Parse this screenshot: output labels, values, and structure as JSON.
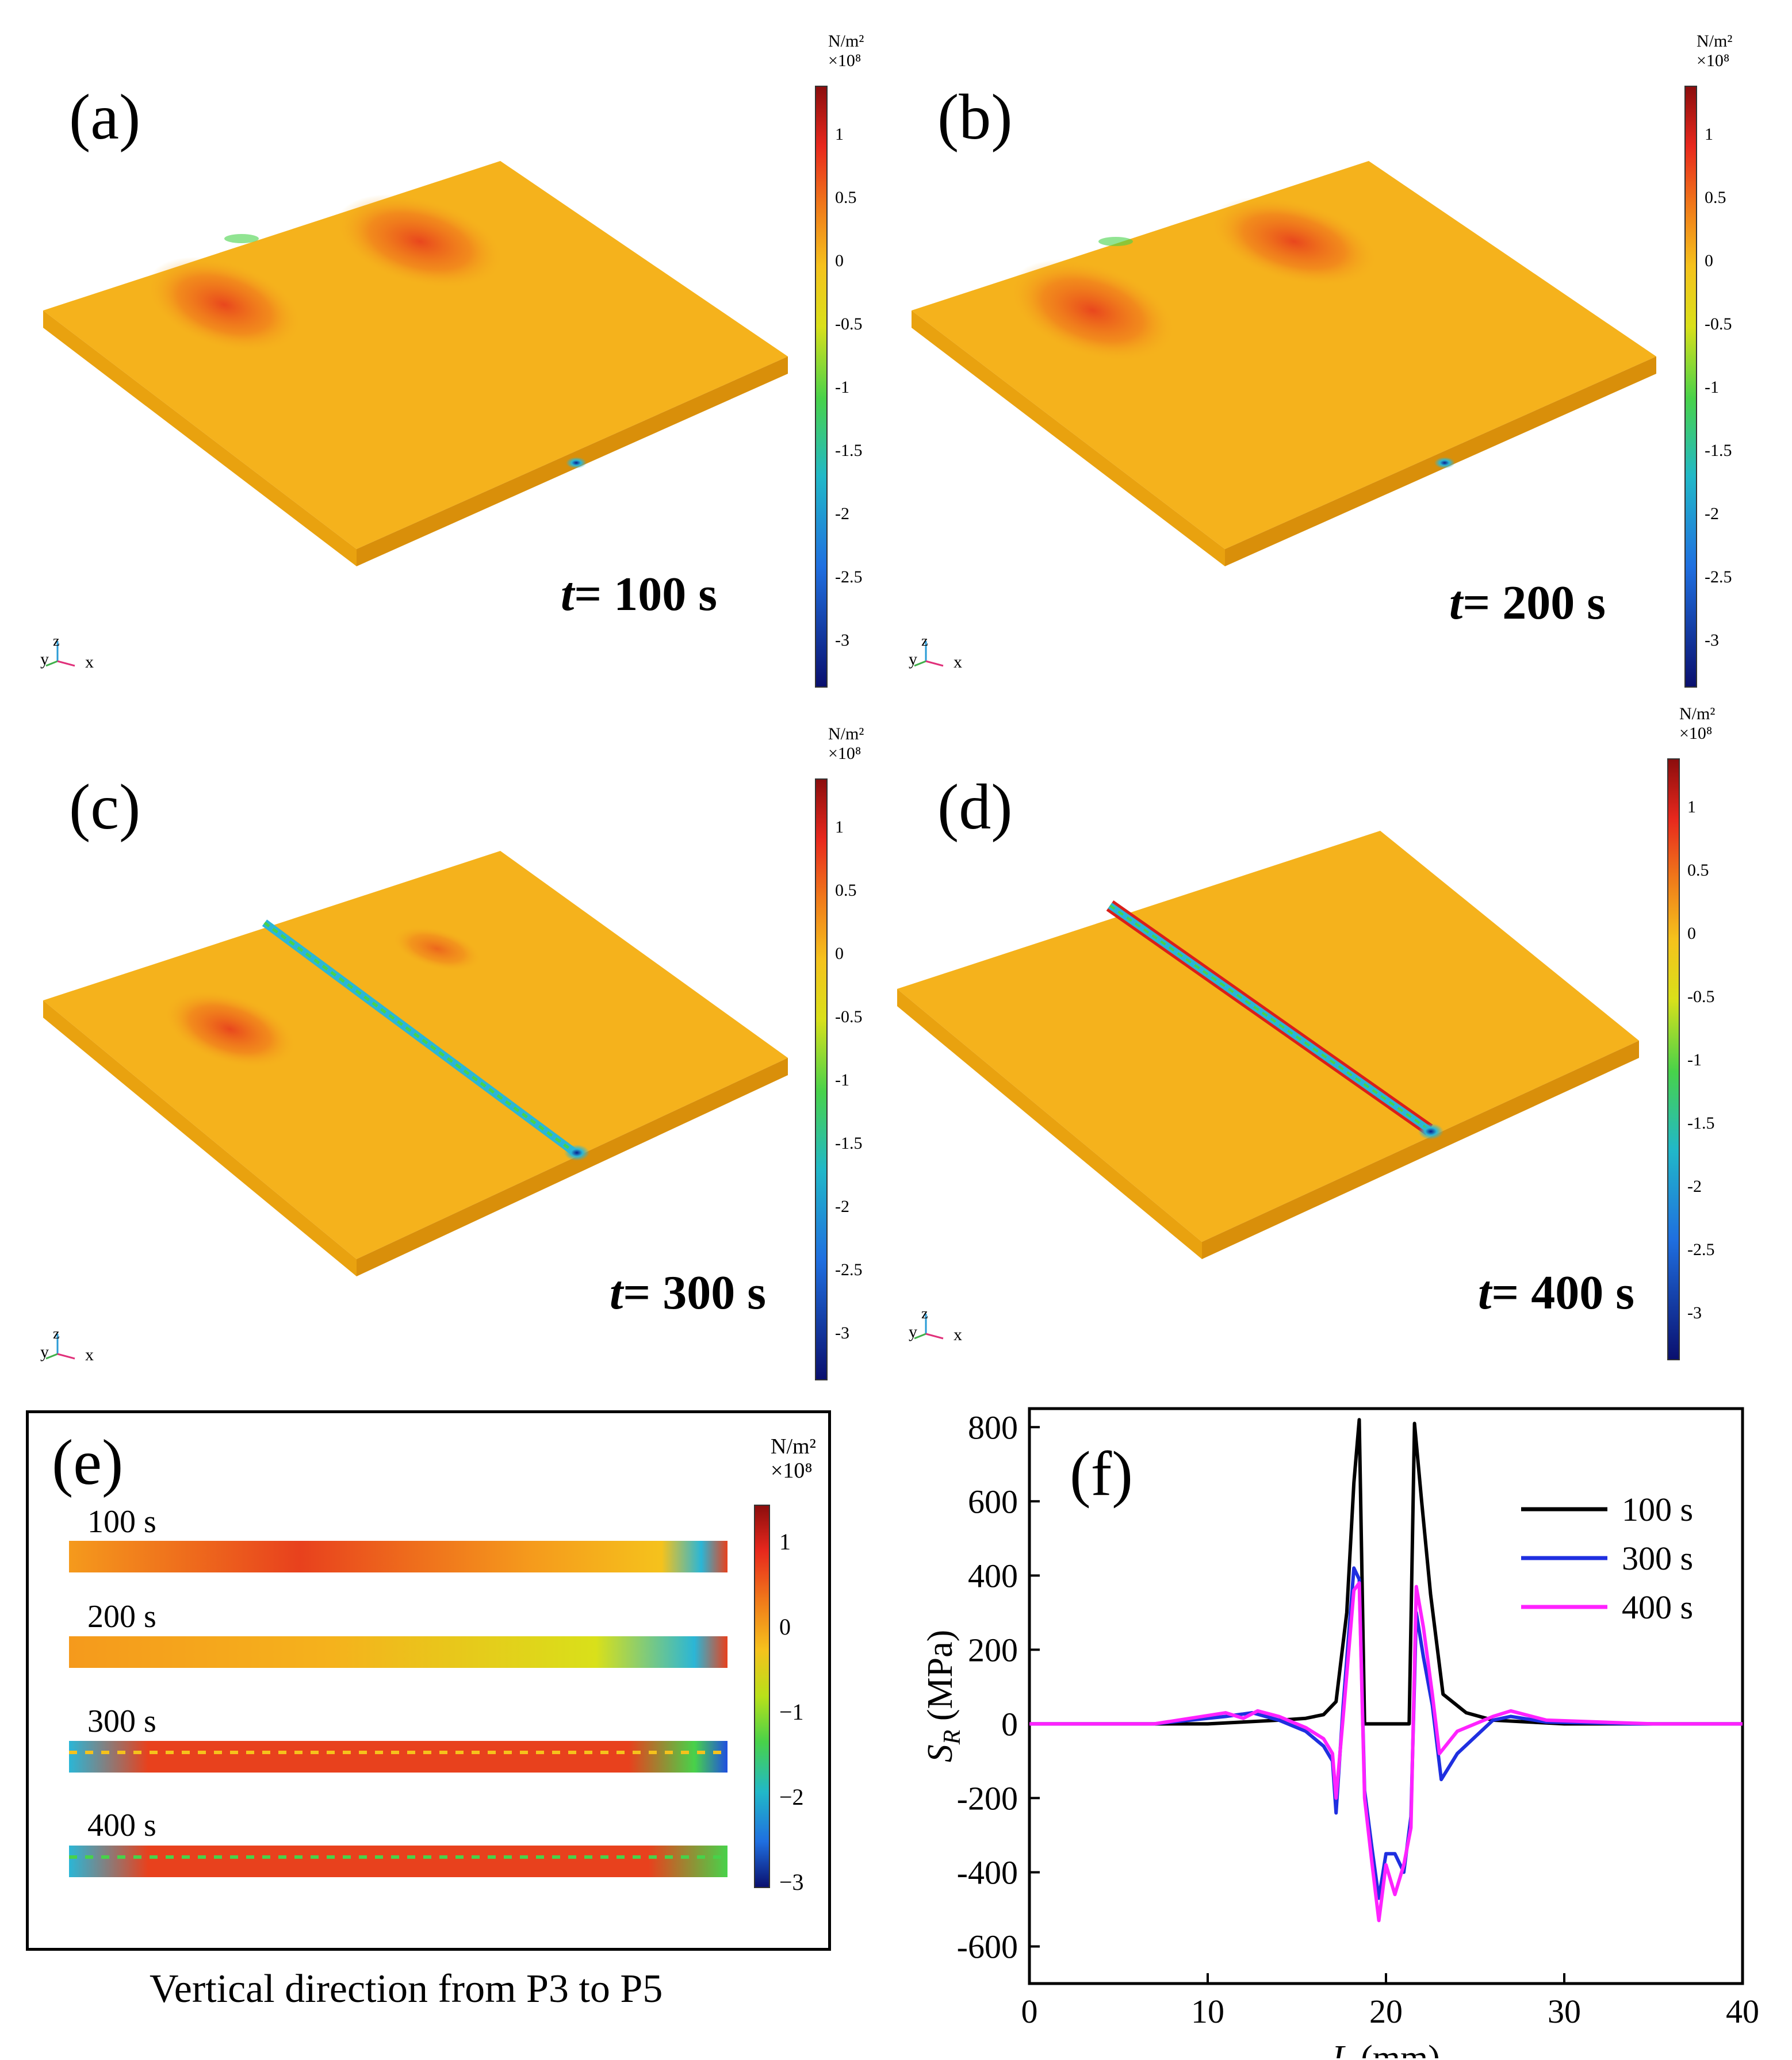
{
  "colors": {
    "plate_base": "#f5b21c",
    "plate_side": "#e9a20f",
    "tension": "#e8411d",
    "compression": "#2bb6d6",
    "deep_compression": "#0a1a8c",
    "series_100": "#000000",
    "series_300": "#1f2fe0",
    "series_400": "#ff22ff"
  },
  "colorbar": {
    "unit_line1": "N/m²",
    "unit_line2": "×10⁸",
    "ticks": [
      "1",
      "0.5",
      "0",
      "-0.5",
      "-1",
      "-1.5",
      "-2",
      "-2.5",
      "-3"
    ]
  },
  "panels": [
    {
      "label": "(a)",
      "t_prefix": "t",
      "t_value": "= 100 s",
      "axes": {
        "y": "y",
        "z": "z",
        "x": "x"
      }
    },
    {
      "label": "(b)",
      "t_prefix": "t",
      "t_value": "= 200 s",
      "axes": {
        "y": "y",
        "z": "z",
        "x": "x"
      }
    },
    {
      "label": "(c)",
      "t_prefix": "t",
      "t_value": "= 300 s",
      "axes": {
        "y": "y",
        "z": "z",
        "x": "x"
      }
    },
    {
      "label": "(d)",
      "t_prefix": "t",
      "t_value": "= 400 s",
      "axes": {
        "y": "y",
        "z": "z",
        "x": "x"
      }
    }
  ],
  "panel_e": {
    "label": "(e)",
    "caption": "Vertical direction from P3 to P5",
    "unit_line1": "N/m²",
    "unit_line2": "×10⁸",
    "ticks": [
      "1",
      "0",
      "−1",
      "−2",
      "−3"
    ],
    "strips": [
      "100 s",
      "200 s",
      "300 s",
      "400 s"
    ]
  },
  "chart_data": {
    "type": "line",
    "panel_label": "(f)",
    "xlabel_var": "L",
    "xlabel_unit": " (mm)",
    "ylabel_var": "S",
    "ylabel_sub": "R",
    "ylabel_unit": " (MPa)",
    "xlim": [
      0,
      40
    ],
    "ylim": [
      -700,
      850
    ],
    "xticks": [
      0,
      10,
      20,
      30,
      40
    ],
    "yticks": [
      800,
      600,
      400,
      200,
      0,
      -200,
      -400,
      -600
    ],
    "legend": "top-right",
    "grid": false,
    "series": [
      {
        "name": "100 s",
        "color": "#000000",
        "x": [
          0,
          5,
          10,
          12,
          14,
          15.5,
          16.5,
          17.2,
          17.8,
          18.2,
          18.5,
          18.8,
          19.5,
          20.5,
          21.3,
          21.6,
          22.0,
          22.5,
          23.2,
          24.5,
          26,
          28,
          30,
          40
        ],
        "y": [
          0,
          0,
          0,
          5,
          10,
          15,
          25,
          60,
          300,
          650,
          820,
          0,
          0,
          0,
          0,
          810,
          600,
          350,
          80,
          30,
          10,
          5,
          0,
          0
        ]
      },
      {
        "name": "300 s",
        "color": "#1f2fe0",
        "x": [
          0,
          7,
          11,
          12.5,
          14,
          15.5,
          16.5,
          17.0,
          17.2,
          17.6,
          18.2,
          18.5,
          18.8,
          19.2,
          19.6,
          20.0,
          20.5,
          21.0,
          21.4,
          21.7,
          22.1,
          22.6,
          23.1,
          24,
          26,
          27,
          29,
          34,
          40
        ],
        "y": [
          0,
          0,
          20,
          30,
          10,
          -20,
          -60,
          -100,
          -240,
          50,
          420,
          390,
          -180,
          -330,
          -470,
          -350,
          -350,
          -400,
          -250,
          300,
          180,
          50,
          -150,
          -80,
          10,
          20,
          5,
          0,
          0
        ]
      },
      {
        "name": "400 s",
        "color": "#ff22ff",
        "x": [
          0,
          7,
          11,
          12,
          12.8,
          14,
          15.5,
          16.5,
          17.0,
          17.2,
          17.6,
          18.2,
          18.5,
          18.8,
          19.2,
          19.6,
          20.0,
          20.5,
          21.0,
          21.4,
          21.7,
          22.1,
          22.6,
          23.0,
          24,
          26,
          27,
          29,
          35,
          40
        ],
        "y": [
          0,
          0,
          30,
          15,
          35,
          20,
          -10,
          -40,
          -80,
          -200,
          20,
          360,
          380,
          -200,
          -370,
          -530,
          -380,
          -460,
          -380,
          -280,
          370,
          260,
          80,
          -80,
          -20,
          20,
          35,
          10,
          0,
          0
        ]
      }
    ]
  }
}
